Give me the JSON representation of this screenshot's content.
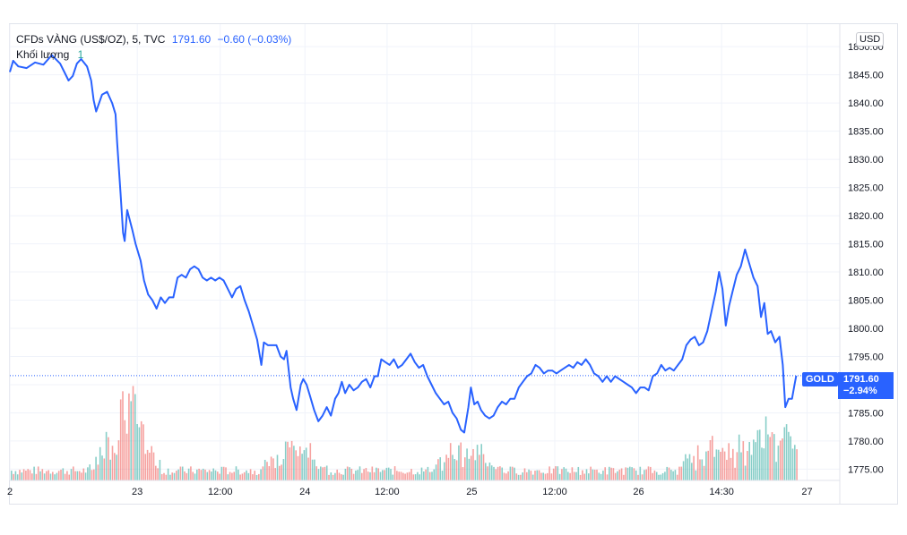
{
  "legend": {
    "symbol": "CFDs VÀNG (US$/OZ), 5, TVC",
    "price": "1791.60",
    "change": "−0.60 (−0.03%)",
    "volume_label": "Khối lượng",
    "volume_value": "1"
  },
  "currency": "USD",
  "last_price_tag": {
    "symbol": "GOLD",
    "price": "1791.60",
    "change": "−2.94%"
  },
  "colors": {
    "line": "#2962ff",
    "vol_up": "#26a69a",
    "vol_down": "#ef5350",
    "grid": "#f0f3fa"
  },
  "chart_data": {
    "type": "line",
    "title": "CFDs VÀNG (US$/OZ), 5, TVC",
    "ylabel": "USD",
    "ylim": [
      1773,
      1854
    ],
    "y_ticks": [
      1850,
      1845,
      1840,
      1835,
      1830,
      1825,
      1820,
      1815,
      1810,
      1805,
      1800,
      1795,
      1790,
      1785,
      1780,
      1775
    ],
    "y_tick_labels": [
      "1850.00",
      "1845.00",
      "1840.00",
      "1835.00",
      "1830.00",
      "1825.00",
      "1820.00",
      "1815.00",
      "1810.00",
      "1805.00",
      "1800.00",
      "1795.00",
      "1790.00",
      "1785.00",
      "1780.00",
      "1775.00"
    ],
    "x_ticks": [
      {
        "label": "2",
        "t": 0
      },
      {
        "label": "23",
        "t": 15.2
      },
      {
        "label": "12:00",
        "t": 25.1
      },
      {
        "label": "24",
        "t": 35.2
      },
      {
        "label": "12:00",
        "t": 45.0
      },
      {
        "label": "25",
        "t": 55.1
      },
      {
        "label": "12:00",
        "t": 65.0
      },
      {
        "label": "26",
        "t": 75.0
      },
      {
        "label": "14:30",
        "t": 84.9
      },
      {
        "label": "27",
        "t": 95.1
      }
    ],
    "t_range": [
      0,
      99
    ],
    "series": [
      {
        "name": "GOLD",
        "points": [
          [
            0,
            1845.5
          ],
          [
            0.4,
            1847.5
          ],
          [
            1,
            1846.5
          ],
          [
            2,
            1846.2
          ],
          [
            3,
            1847.2
          ],
          [
            4,
            1846.8
          ],
          [
            5,
            1848.5
          ],
          [
            6,
            1847.0
          ],
          [
            6.5,
            1845.5
          ],
          [
            7,
            1844.0
          ],
          [
            7.5,
            1844.8
          ],
          [
            8,
            1847.0
          ],
          [
            8.5,
            1847.8
          ],
          [
            9.2,
            1846.5
          ],
          [
            9.7,
            1844.0
          ],
          [
            10,
            1840.5
          ],
          [
            10.3,
            1838.5
          ],
          [
            11,
            1841.5
          ],
          [
            11.6,
            1842.0
          ],
          [
            12.2,
            1840.0
          ],
          [
            12.6,
            1838.0
          ],
          [
            12.8,
            1833.0
          ],
          [
            13.2,
            1824.0
          ],
          [
            13.5,
            1817.0
          ],
          [
            13.7,
            1815.5
          ],
          [
            14,
            1821.0
          ],
          [
            14.6,
            1817.5
          ],
          [
            15,
            1815.0
          ],
          [
            15.6,
            1812.0
          ],
          [
            16,
            1808.5
          ],
          [
            16.5,
            1806.0
          ],
          [
            17,
            1805.0
          ],
          [
            17.5,
            1803.5
          ],
          [
            18,
            1805.5
          ],
          [
            18.5,
            1804.5
          ],
          [
            19,
            1805.5
          ],
          [
            19.5,
            1805.5
          ],
          [
            20,
            1809.0
          ],
          [
            20.5,
            1809.5
          ],
          [
            21,
            1809.0
          ],
          [
            21.5,
            1810.5
          ],
          [
            22,
            1811.0
          ],
          [
            22.5,
            1810.5
          ],
          [
            23,
            1809.0
          ],
          [
            23.5,
            1808.5
          ],
          [
            24,
            1809.0
          ],
          [
            24.5,
            1808.5
          ],
          [
            25,
            1809.0
          ],
          [
            25.5,
            1808.5
          ],
          [
            26,
            1807.0
          ],
          [
            26.5,
            1805.5
          ],
          [
            27,
            1807.0
          ],
          [
            27.5,
            1807.5
          ],
          [
            28,
            1805.0
          ],
          [
            28.5,
            1803.0
          ],
          [
            29,
            1800.5
          ],
          [
            29.5,
            1798.0
          ],
          [
            30,
            1793.5
          ],
          [
            30.3,
            1797.5
          ],
          [
            30.8,
            1797.0
          ],
          [
            31.3,
            1797.0
          ],
          [
            31.8,
            1797.0
          ],
          [
            32.3,
            1795.0
          ],
          [
            32.7,
            1794.5
          ],
          [
            33,
            1796.0
          ],
          [
            33.5,
            1789.5
          ],
          [
            33.8,
            1787.5
          ],
          [
            34.2,
            1785.5
          ],
          [
            34.7,
            1790.0
          ],
          [
            35,
            1791.0
          ],
          [
            35.4,
            1790.0
          ],
          [
            35.8,
            1788.0
          ],
          [
            36.3,
            1785.5
          ],
          [
            36.8,
            1783.5
          ],
          [
            37.3,
            1784.5
          ],
          [
            37.8,
            1786.0
          ],
          [
            38.3,
            1784.5
          ],
          [
            38.8,
            1787.5
          ],
          [
            39.2,
            1788.5
          ],
          [
            39.6,
            1790.5
          ],
          [
            40,
            1788.5
          ],
          [
            40.5,
            1790.0
          ],
          [
            41,
            1789.0
          ],
          [
            41.5,
            1789.5
          ],
          [
            42,
            1790.5
          ],
          [
            42.5,
            1791.0
          ],
          [
            43,
            1789.5
          ],
          [
            43.5,
            1791.5
          ],
          [
            43.9,
            1791.5
          ],
          [
            44.3,
            1794.5
          ],
          [
            44.8,
            1794.0
          ],
          [
            45.3,
            1793.5
          ],
          [
            45.8,
            1794.5
          ],
          [
            46.3,
            1793.0
          ],
          [
            46.8,
            1793.5
          ],
          [
            47.3,
            1794.5
          ],
          [
            47.8,
            1795.5
          ],
          [
            48.3,
            1794.0
          ],
          [
            48.8,
            1793.0
          ],
          [
            49.3,
            1793.5
          ],
          [
            49.8,
            1791.5
          ],
          [
            50.3,
            1790.0
          ],
          [
            50.8,
            1788.5
          ],
          [
            51.3,
            1787.5
          ],
          [
            51.8,
            1786.5
          ],
          [
            52.3,
            1787.0
          ],
          [
            52.8,
            1785.0
          ],
          [
            53.3,
            1784.0
          ],
          [
            53.8,
            1782.0
          ],
          [
            54.2,
            1781.5
          ],
          [
            54.7,
            1786.0
          ],
          [
            55,
            1789.5
          ],
          [
            55.4,
            1786.5
          ],
          [
            55.8,
            1787.0
          ],
          [
            56.2,
            1785.5
          ],
          [
            56.7,
            1784.5
          ],
          [
            57.2,
            1784.0
          ],
          [
            57.7,
            1784.5
          ],
          [
            58.2,
            1786.0
          ],
          [
            58.7,
            1787.0
          ],
          [
            59.2,
            1786.5
          ],
          [
            59.7,
            1787.5
          ],
          [
            60.2,
            1787.5
          ],
          [
            60.7,
            1789.5
          ],
          [
            61.2,
            1790.5
          ],
          [
            61.7,
            1791.5
          ],
          [
            62.2,
            1792.0
          ],
          [
            62.7,
            1793.5
          ],
          [
            63.2,
            1793.0
          ],
          [
            63.7,
            1792.0
          ],
          [
            64.2,
            1792.5
          ],
          [
            64.7,
            1792.5
          ],
          [
            65.2,
            1792.0
          ],
          [
            65.7,
            1792.5
          ],
          [
            66.2,
            1793.0
          ],
          [
            66.7,
            1793.5
          ],
          [
            67.2,
            1793.0
          ],
          [
            67.7,
            1794.0
          ],
          [
            68.2,
            1793.5
          ],
          [
            68.7,
            1794.5
          ],
          [
            69.2,
            1793.5
          ],
          [
            69.7,
            1792.0
          ],
          [
            70.2,
            1791.5
          ],
          [
            70.7,
            1790.5
          ],
          [
            71.2,
            1791.5
          ],
          [
            71.7,
            1790.5
          ],
          [
            72.2,
            1791.5
          ],
          [
            72.7,
            1791.0
          ],
          [
            73.2,
            1790.5
          ],
          [
            73.7,
            1790.0
          ],
          [
            74.2,
            1789.5
          ],
          [
            74.7,
            1788.5
          ],
          [
            75.2,
            1789.5
          ],
          [
            75.7,
            1789.5
          ],
          [
            76.2,
            1789.0
          ],
          [
            76.7,
            1791.5
          ],
          [
            77.2,
            1792.0
          ],
          [
            77.7,
            1793.5
          ],
          [
            78.2,
            1792.5
          ],
          [
            78.7,
            1793.0
          ],
          [
            79.2,
            1792.5
          ],
          [
            79.7,
            1793.5
          ],
          [
            80.2,
            1794.5
          ],
          [
            80.7,
            1797.0
          ],
          [
            81.2,
            1798.0
          ],
          [
            81.7,
            1798.5
          ],
          [
            82.2,
            1797.0
          ],
          [
            82.7,
            1797.5
          ],
          [
            83.2,
            1799.5
          ],
          [
            83.7,
            1803.0
          ],
          [
            84.2,
            1806.5
          ],
          [
            84.6,
            1810.0
          ],
          [
            85.0,
            1807.0
          ],
          [
            85.4,
            1800.5
          ],
          [
            85.8,
            1804.0
          ],
          [
            86.2,
            1806.5
          ],
          [
            86.7,
            1809.5
          ],
          [
            87.2,
            1811.0
          ],
          [
            87.7,
            1814.0
          ],
          [
            88.2,
            1811.5
          ],
          [
            88.7,
            1809.0
          ],
          [
            89.2,
            1807.5
          ],
          [
            89.6,
            1802.0
          ],
          [
            90.0,
            1804.5
          ],
          [
            90.4,
            1799.0
          ],
          [
            90.8,
            1799.5
          ],
          [
            91.3,
            1797.5
          ],
          [
            91.8,
            1798.5
          ],
          [
            92.2,
            1793.5
          ],
          [
            92.5,
            1786.0
          ],
          [
            92.9,
            1787.5
          ],
          [
            93.3,
            1787.5
          ],
          [
            93.6,
            1790.0
          ],
          [
            93.8,
            1791.6
          ]
        ]
      }
    ],
    "volume": {
      "name": "Khối lượng",
      "last_value": 1
    }
  }
}
